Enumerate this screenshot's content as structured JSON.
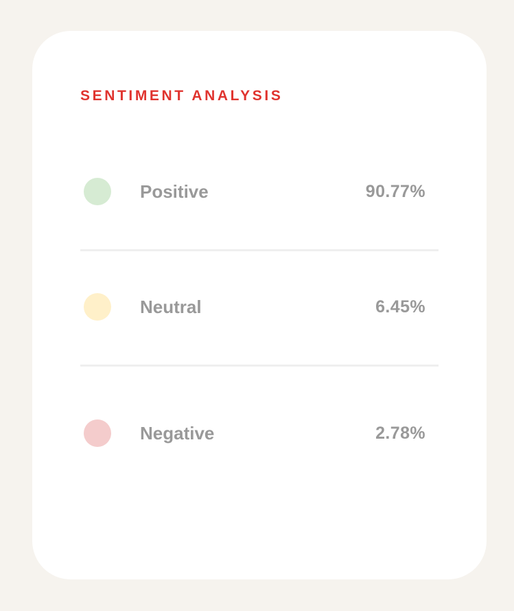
{
  "card": {
    "title": "SENTIMENT ANALYSIS",
    "title_color": "#e0342f"
  },
  "rows": [
    {
      "label": "Positive",
      "value": "90.77%",
      "dot_color": "#d6ebd3"
    },
    {
      "label": "Neutral",
      "value": "6.45%",
      "dot_color": "#fff0c9"
    },
    {
      "label": "Negative",
      "value": "2.78%",
      "dot_color": "#f4cccc"
    }
  ]
}
